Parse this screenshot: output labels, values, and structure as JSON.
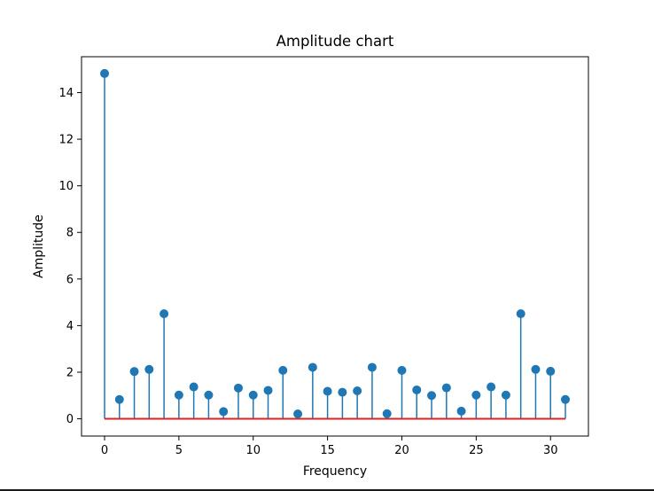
{
  "chart_data": {
    "type": "stem",
    "title": "Amplitude chart",
    "xlabel": "Frequency",
    "ylabel": "Amplitude",
    "xlim": [
      -1.55,
      32.55
    ],
    "ylim": [
      -0.74,
      15.54
    ],
    "xticks": [
      0,
      5,
      10,
      15,
      20,
      25,
      30
    ],
    "yticks": [
      0,
      2,
      4,
      6,
      8,
      10,
      12,
      14
    ],
    "grid": false,
    "colors": {
      "stem": "#1f77b4",
      "baseline": "#d62728",
      "axes": "#000000"
    },
    "x": [
      0,
      1,
      2,
      3,
      4,
      5,
      6,
      7,
      8,
      9,
      10,
      11,
      12,
      13,
      14,
      15,
      16,
      17,
      18,
      19,
      20,
      21,
      22,
      23,
      24,
      25,
      26,
      27,
      28,
      29,
      30,
      31
    ],
    "values": [
      14.82,
      0.83,
      2.03,
      2.12,
      4.51,
      1.02,
      1.37,
      1.02,
      0.31,
      1.32,
      1.02,
      1.22,
      2.08,
      0.21,
      2.21,
      1.18,
      1.14,
      1.2,
      2.21,
      0.22,
      2.08,
      1.24,
      1.0,
      1.33,
      0.33,
      1.02,
      1.37,
      1.02,
      4.51,
      2.12,
      2.04,
      0.83
    ],
    "baseline": 0
  }
}
